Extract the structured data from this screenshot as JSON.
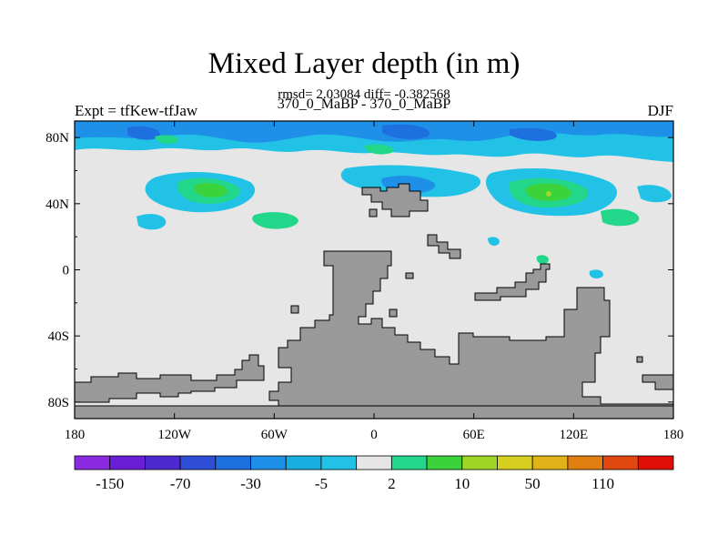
{
  "chart_data": {
    "type": "heatmap",
    "title": "Mixed Layer depth (in m)",
    "subtitle": "rmsd= 2.03084 diff= -0.382568",
    "comparison": "370_0_MaBP - 370_0_MaBP",
    "left_label": "Expt = tfKew-tfJaw",
    "right_label": "DJF",
    "x_ticks": [
      "180",
      "120W",
      "60W",
      "0",
      "60E",
      "120E",
      "180"
    ],
    "y_ticks": [
      "80N",
      "40N",
      "0",
      "40S",
      "80S"
    ],
    "xlim": [
      -180,
      180
    ],
    "ylim": [
      -90,
      90
    ],
    "colorbar": {
      "colors": [
        "#8a2be2",
        "#6a1fd6",
        "#4b2bcf",
        "#2f4fd8",
        "#1e6fe0",
        "#1e90e8",
        "#18aee0",
        "#22c2e6",
        "#e6e6e6",
        "#22d68a",
        "#3cd23c",
        "#9ed628",
        "#d8d020",
        "#e0b418",
        "#e07e10",
        "#e04810",
        "#e01008"
      ],
      "labels": [
        "-150",
        "-70",
        "-30",
        "-5",
        "2",
        "10",
        "50",
        "110"
      ],
      "label_slots": [
        1,
        3,
        5,
        7,
        9,
        11,
        13,
        15
      ]
    },
    "land_color": "#999999",
    "background_color": "#e6e6e6"
  }
}
